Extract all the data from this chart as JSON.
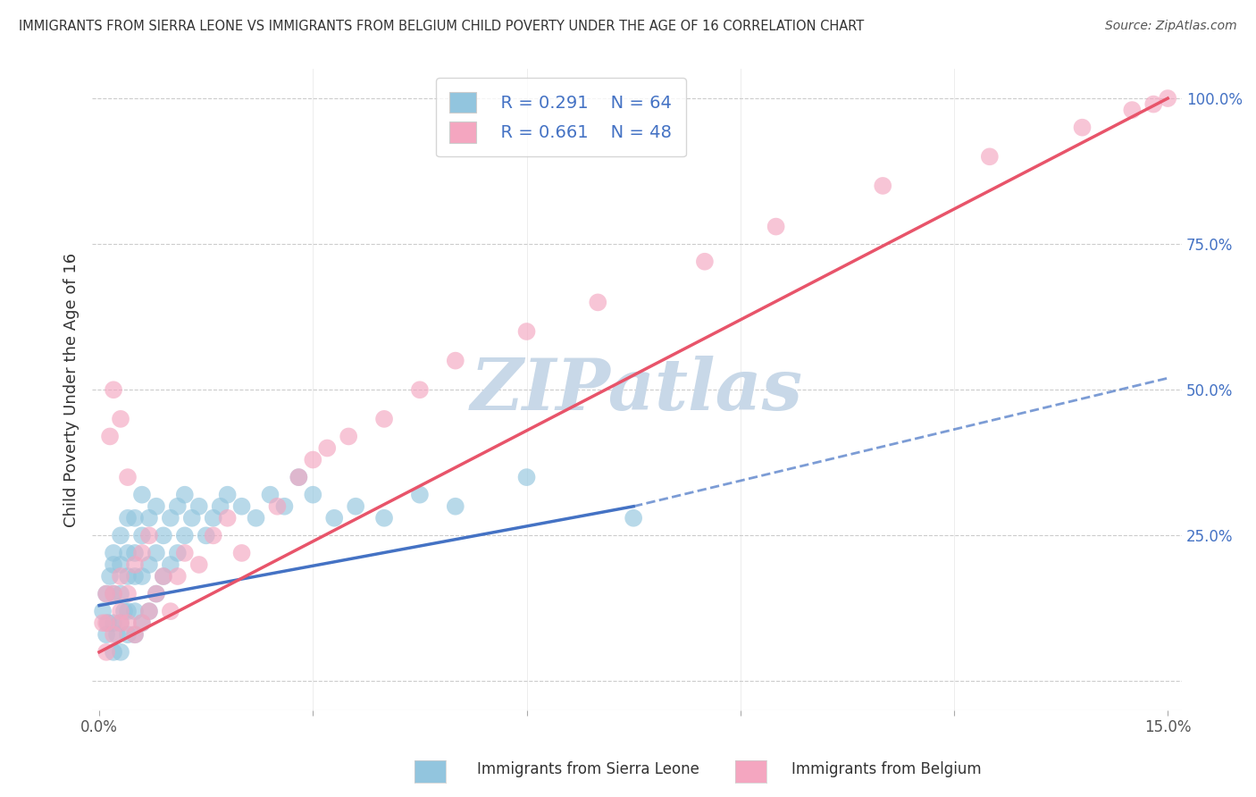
{
  "title": "IMMIGRANTS FROM SIERRA LEONE VS IMMIGRANTS FROM BELGIUM CHILD POVERTY UNDER THE AGE OF 16 CORRELATION CHART",
  "source": "Source: ZipAtlas.com",
  "ylabel": "Child Poverty Under the Age of 16",
  "xlim": [
    -0.001,
    0.152
  ],
  "ylim": [
    -0.05,
    1.05
  ],
  "R_sierra": 0.291,
  "N_sierra": 64,
  "R_belgium": 0.661,
  "N_belgium": 48,
  "color_sierra": "#92C5DE",
  "color_belgium": "#F4A6C0",
  "color_trend_sierra": "#4472C4",
  "color_trend_belgium": "#E8546A",
  "color_text_blue": "#4472C4",
  "watermark": "ZIPatlas",
  "watermark_color": "#C8D8E8",
  "background_color": "#FFFFFF",
  "grid_color": "#CCCCCC",
  "bottom_label_sierra": "Immigrants from Sierra Leone",
  "bottom_label_belgium": "Immigrants from Belgium",
  "sierra_x": [
    0.0005,
    0.001,
    0.001,
    0.0012,
    0.0015,
    0.002,
    0.002,
    0.002,
    0.002,
    0.002,
    0.0025,
    0.003,
    0.003,
    0.003,
    0.003,
    0.003,
    0.0035,
    0.004,
    0.004,
    0.004,
    0.004,
    0.004,
    0.005,
    0.005,
    0.005,
    0.005,
    0.005,
    0.006,
    0.006,
    0.006,
    0.006,
    0.007,
    0.007,
    0.007,
    0.008,
    0.008,
    0.008,
    0.009,
    0.009,
    0.01,
    0.01,
    0.011,
    0.011,
    0.012,
    0.012,
    0.013,
    0.014,
    0.015,
    0.016,
    0.017,
    0.018,
    0.02,
    0.022,
    0.024,
    0.026,
    0.028,
    0.03,
    0.033,
    0.036,
    0.04,
    0.045,
    0.05,
    0.06,
    0.075
  ],
  "sierra_y": [
    0.12,
    0.08,
    0.15,
    0.1,
    0.18,
    0.05,
    0.1,
    0.15,
    0.2,
    0.22,
    0.08,
    0.05,
    0.1,
    0.15,
    0.2,
    0.25,
    0.12,
    0.08,
    0.12,
    0.18,
    0.22,
    0.28,
    0.08,
    0.12,
    0.18,
    0.22,
    0.28,
    0.1,
    0.18,
    0.25,
    0.32,
    0.12,
    0.2,
    0.28,
    0.15,
    0.22,
    0.3,
    0.18,
    0.25,
    0.2,
    0.28,
    0.22,
    0.3,
    0.25,
    0.32,
    0.28,
    0.3,
    0.25,
    0.28,
    0.3,
    0.32,
    0.3,
    0.28,
    0.32,
    0.3,
    0.35,
    0.32,
    0.28,
    0.3,
    0.28,
    0.32,
    0.3,
    0.35,
    0.28
  ],
  "belgium_x": [
    0.0005,
    0.001,
    0.001,
    0.001,
    0.0015,
    0.002,
    0.002,
    0.002,
    0.003,
    0.003,
    0.003,
    0.003,
    0.004,
    0.004,
    0.004,
    0.005,
    0.005,
    0.006,
    0.006,
    0.007,
    0.007,
    0.008,
    0.009,
    0.01,
    0.011,
    0.012,
    0.014,
    0.016,
    0.018,
    0.02,
    0.025,
    0.028,
    0.03,
    0.032,
    0.035,
    0.04,
    0.045,
    0.05,
    0.06,
    0.07,
    0.085,
    0.095,
    0.11,
    0.125,
    0.138,
    0.145,
    0.148,
    0.15
  ],
  "belgium_y": [
    0.1,
    0.05,
    0.1,
    0.15,
    0.42,
    0.08,
    0.15,
    0.5,
    0.1,
    0.12,
    0.18,
    0.45,
    0.1,
    0.15,
    0.35,
    0.08,
    0.2,
    0.1,
    0.22,
    0.12,
    0.25,
    0.15,
    0.18,
    0.12,
    0.18,
    0.22,
    0.2,
    0.25,
    0.28,
    0.22,
    0.3,
    0.35,
    0.38,
    0.4,
    0.42,
    0.45,
    0.5,
    0.55,
    0.6,
    0.65,
    0.72,
    0.78,
    0.85,
    0.9,
    0.95,
    0.98,
    0.99,
    1.0
  ],
  "trend_sierra_x0": 0.0,
  "trend_sierra_x1": 0.075,
  "trend_sierra_y0": 0.13,
  "trend_sierra_y1": 0.3,
  "trend_belgium_x0": 0.0,
  "trend_belgium_x1": 0.15,
  "trend_belgium_y0": 0.05,
  "trend_belgium_y1": 1.0
}
